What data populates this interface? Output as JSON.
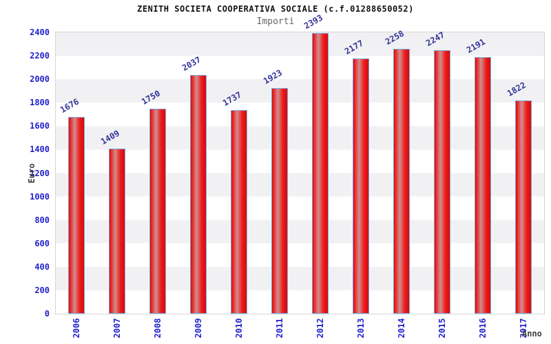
{
  "chart_data": {
    "type": "bar",
    "title": "ZENITH SOCIETA COOPERATIVA SOCIALE (c.f.01288650052)",
    "subtitle": "Importi",
    "xlabel": "Anno",
    "ylabel": "Euro",
    "categories": [
      "2006",
      "2007",
      "2008",
      "2009",
      "2010",
      "2011",
      "2012",
      "2013",
      "2014",
      "2015",
      "2016",
      "2017"
    ],
    "values": [
      1676,
      1409,
      1750,
      2037,
      1737,
      1923,
      2393,
      2177,
      2258,
      2247,
      2191,
      1822
    ],
    "ylim": [
      0,
      2400
    ],
    "ytick_step": 200,
    "legend": "none",
    "grid": "alternating horizontal bands every 200 units",
    "bar_label_rotation_deg": -30,
    "xtick_rotation_deg": -90
  },
  "colors": {
    "title_text": "#111111",
    "subtitle_text": "#666666",
    "tick_text": "#2222cc",
    "value_text": "#333399",
    "axis_name_text": "#404040",
    "bar_edge": "#79a7dd",
    "bar_red": "#ee1a1a",
    "bar_red_dark": "#d40d0d",
    "bar_highlight": "#cf8e8e",
    "band_gray": "#f1f1f4",
    "plot_border": "#d6d6d6"
  }
}
